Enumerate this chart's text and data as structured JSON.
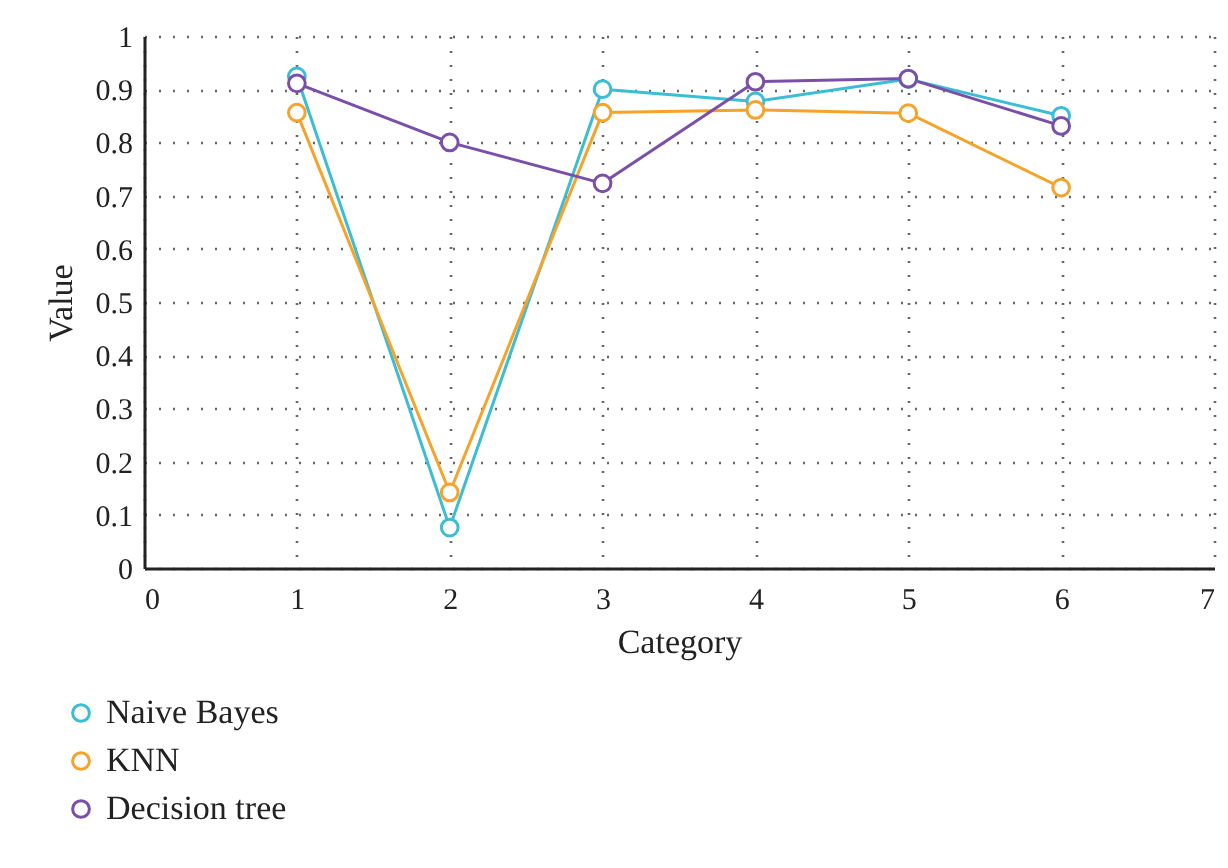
{
  "chart_data": {
    "type": "line",
    "xlabel": "Category",
    "ylabel": "Value",
    "x": [
      1,
      2,
      3,
      4,
      5,
      6
    ],
    "series": [
      {
        "name": "Naive Bayes",
        "color": "#3bbdd4",
        "values": [
          0.924,
          0.076,
          0.9,
          0.877,
          0.919,
          0.85
        ]
      },
      {
        "name": "KNN",
        "color": "#f5a32a",
        "values": [
          0.856,
          0.142,
          0.856,
          0.861,
          0.855,
          0.715
        ]
      },
      {
        "name": "Decision tree",
        "color": "#7a4fa8",
        "values": [
          0.911,
          0.8,
          0.723,
          0.914,
          0.92,
          0.831
        ]
      }
    ],
    "xlim": [
      0,
      7
    ],
    "xticks": [
      0,
      1,
      2,
      3,
      4,
      5,
      6,
      7
    ],
    "ylim": [
      0,
      1
    ],
    "yticks": [
      0,
      0.1,
      0.2,
      0.3,
      0.4,
      0.5,
      0.6,
      0.7,
      0.8,
      0.9,
      1
    ],
    "grid": true,
    "legend": "bottom left",
    "marker": "circle",
    "line_style": "solid"
  }
}
